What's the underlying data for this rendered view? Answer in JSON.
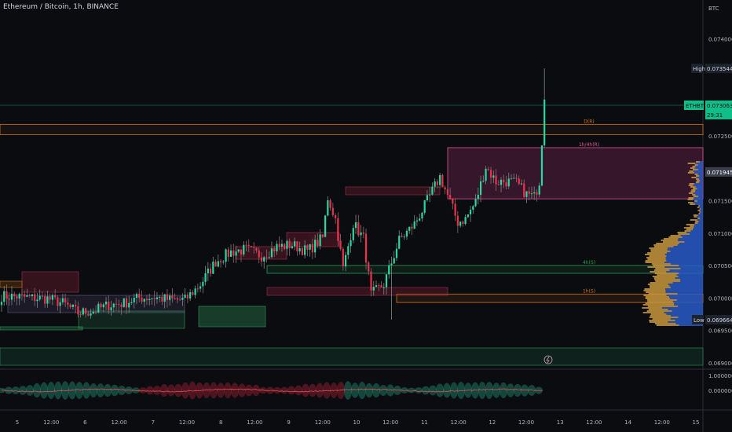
{
  "header": {
    "symbol_title": "Ethereum / Bitcoin, 1h, BINANCE",
    "currency": "BTC"
  },
  "price_axis": {
    "ticks": [
      "0.074000",
      "0.072500",
      "0.071500",
      "0.071000",
      "0.070500",
      "0.070000",
      "0.069500",
      "0.069000"
    ],
    "high_tag": "High",
    "high_value": "0.073544",
    "last_tag": "ETHBTC",
    "last_value": "0.073063",
    "countdown": "29:31",
    "level_value": "0.071945",
    "low_tag": "Low",
    "low_value": "0.069664"
  },
  "zone_labels": {
    "daily": "D(R)",
    "h1_h4": "1h/4h(R)",
    "h4_support": "4h(S)",
    "h1_support": "1h(S)"
  },
  "oscillator_axis": {
    "ticks": [
      "1.000000",
      "0.000000"
    ]
  },
  "time_axis": {
    "ticks": [
      "5",
      "12:00",
      "6",
      "12:00",
      "7",
      "12:00",
      "8",
      "12:00",
      "9",
      "12:00",
      "10",
      "12:00",
      "11",
      "12:00",
      "12",
      "12:00",
      "13",
      "12:00",
      "14",
      "12:00",
      "15"
    ]
  },
  "chart_data": {
    "type": "candlestick",
    "title": "Ethereum / Bitcoin, 1h, BINANCE",
    "ylabel": "BTC",
    "ylim": [
      0.0689,
      0.0746
    ],
    "x_ticks": [
      "5",
      "12:00",
      "6",
      "12:00",
      "7",
      "12:00",
      "8",
      "12:00",
      "9",
      "12:00",
      "10",
      "12:00",
      "11",
      "12:00",
      "12",
      "12:00",
      "13",
      "12:00",
      "14",
      "12:00",
      "15"
    ],
    "y_ticks": [
      0.074,
      0.0725,
      0.0715,
      0.071,
      0.0705,
      0.07,
      0.0695,
      0.069
    ],
    "close_anchors": [
      [
        0,
        0.07003
      ],
      [
        6,
        0.07002
      ],
      [
        12,
        0.07
      ],
      [
        18,
        0.06999
      ],
      [
        24,
        0.06992
      ],
      [
        30,
        0.06977
      ],
      [
        36,
        0.0698
      ],
      [
        42,
        0.06989
      ],
      [
        48,
        0.06992
      ],
      [
        54,
        0.07
      ],
      [
        60,
        0.07001
      ],
      [
        66,
        0.06997
      ],
      [
        72,
        0.06997
      ],
      [
        78,
        0.07021
      ],
      [
        84,
        0.07056
      ],
      [
        90,
        0.07071
      ],
      [
        96,
        0.07075
      ],
      [
        102,
        0.07065
      ],
      [
        108,
        0.07079
      ],
      [
        114,
        0.07082
      ],
      [
        120,
        0.07072
      ],
      [
        126,
        0.07093
      ],
      [
        128,
        0.07155
      ],
      [
        131,
        0.07122
      ],
      [
        134,
        0.07045
      ],
      [
        138,
        0.07115
      ],
      [
        142,
        0.07092
      ],
      [
        145,
        0.07005
      ],
      [
        150,
        0.07021
      ],
      [
        156,
        0.07089
      ],
      [
        162,
        0.07114
      ],
      [
        166,
        0.07142
      ],
      [
        169,
        0.07165
      ],
      [
        172,
        0.07187
      ],
      [
        175,
        0.07158
      ],
      [
        179,
        0.07117
      ],
      [
        182,
        0.07122
      ],
      [
        186,
        0.07148
      ],
      [
        190,
        0.07203
      ],
      [
        194,
        0.07179
      ],
      [
        198,
        0.0718
      ],
      [
        202,
        0.07177
      ],
      [
        206,
        0.0716
      ],
      [
        209,
        0.07156
      ],
      [
        211,
        0.0718
      ],
      [
        213,
        0.07306
      ]
    ],
    "last_price": 0.073063,
    "high": 0.073544,
    "low": 0.069664,
    "zones": [
      {
        "label": "D(R)",
        "from": 0.07252,
        "to": 0.07268,
        "color": "#d3741a"
      },
      {
        "label": "1h/4h(R)",
        "from": 0.07153,
        "to": 0.07232,
        "color": "#e05a9a"
      },
      {
        "label": "4h(S)",
        "from": 0.07038,
        "to": 0.0705,
        "color": "#2e9a5c"
      },
      {
        "label": "1h(S)",
        "from": 0.06993,
        "to": 0.07006,
        "color": "#d3741a"
      }
    ],
    "oscillator_ylim": [
      0,
      1
    ]
  }
}
